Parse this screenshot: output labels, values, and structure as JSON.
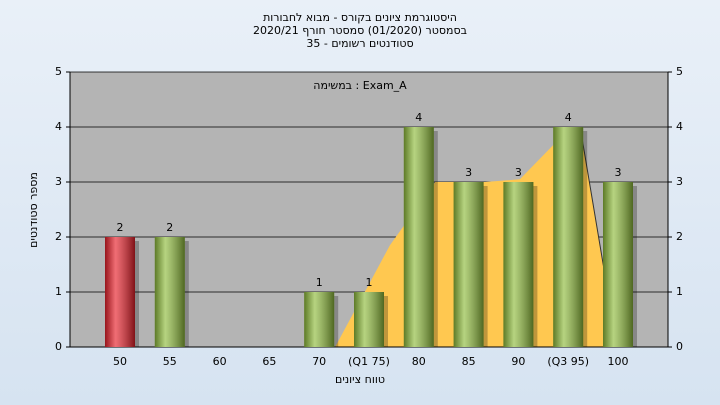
{
  "chart_data": {
    "type": "bar",
    "title": "היסטוגרמת ציונים בקורס - מבוא לחבורות",
    "subtitle": "בסמסטר  (01/2020)  סמסטר חורף 2020/21",
    "subtitle2": "סטודנטים רשומים - 35",
    "annotation": "במשימה : Exam_A",
    "x_label": "טווח ציונים",
    "y_label": "מספר סטודנטים",
    "categories": [
      "50",
      "55",
      "60",
      "65",
      "70",
      "(Q1 75)",
      "80",
      "85",
      "90",
      "(Q3 95)",
      "100"
    ],
    "values": [
      2,
      2,
      0,
      0,
      1,
      1,
      4,
      3,
      3,
      4,
      3
    ],
    "colors": [
      "#e8202a",
      "#8fbc3c",
      "#8fbc3c",
      "#8fbc3c",
      "#8fbc3c",
      "#8fbc3c",
      "#8fbc3c",
      "#8fbc3c",
      "#8fbc3c",
      "#8fbc3c",
      "#8fbc3c"
    ],
    "area": {
      "color": "#ffc850",
      "x": [
        71.6,
        77.1,
        81.65,
        86.65,
        90.15,
        93.65,
        96.2,
        98.7
      ],
      "values": [
        0,
        1.85,
        3,
        3,
        3.05,
        3.7,
        4,
        1.3
      ]
    },
    "ylim": [
      0,
      5
    ],
    "yticks": [
      0,
      1,
      2,
      3,
      4,
      5
    ],
    "y2lim": [
      0,
      5
    ],
    "y2ticks": [
      0,
      1,
      2,
      3,
      4,
      5
    ],
    "grid": true
  }
}
